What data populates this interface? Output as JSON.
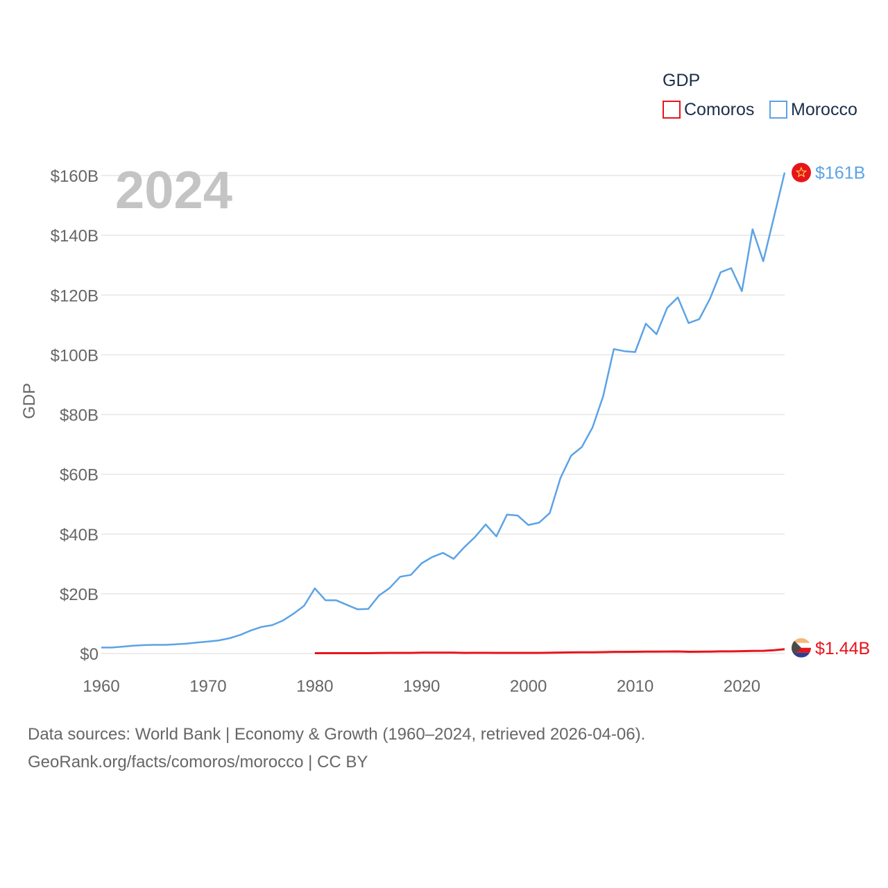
{
  "chart_data": {
    "type": "line",
    "title": "",
    "ylabel": "GDP",
    "xlabel": "",
    "current_year": "2024",
    "xlim": [
      1960,
      2024
    ],
    "ylim": [
      0,
      160
    ],
    "y_unit": "billion USD",
    "x_ticks": [
      1960,
      1970,
      1980,
      1990,
      2000,
      2010,
      2020
    ],
    "y_ticks": [
      {
        "value": 0,
        "label": "$0"
      },
      {
        "value": 20,
        "label": "$20B"
      },
      {
        "value": 40,
        "label": "$40B"
      },
      {
        "value": 60,
        "label": "$60B"
      },
      {
        "value": 80,
        "label": "$80B"
      },
      {
        "value": 100,
        "label": "$100B"
      },
      {
        "value": 120,
        "label": "$120B"
      },
      {
        "value": 140,
        "label": "$140B"
      },
      {
        "value": 160,
        "label": "$160B"
      }
    ],
    "legend": {
      "title": "GDP",
      "position": "top-right"
    },
    "series": [
      {
        "name": "Comoros",
        "color": "#e8141c",
        "end_label": "$1.44B",
        "flag_icon": "comoros-flag-icon",
        "x": [
          1980,
          1981,
          1982,
          1983,
          1984,
          1985,
          1986,
          1987,
          1988,
          1989,
          1990,
          1991,
          1992,
          1993,
          1994,
          1995,
          1996,
          1997,
          1998,
          1999,
          2000,
          2001,
          2002,
          2003,
          2004,
          2005,
          2006,
          2007,
          2008,
          2009,
          2010,
          2011,
          2012,
          2013,
          2014,
          2015,
          2016,
          2017,
          2018,
          2019,
          2020,
          2021,
          2022,
          2023,
          2024
        ],
        "values": [
          0.12,
          0.11,
          0.11,
          0.11,
          0.11,
          0.11,
          0.16,
          0.2,
          0.22,
          0.22,
          0.29,
          0.29,
          0.3,
          0.3,
          0.2,
          0.24,
          0.24,
          0.21,
          0.21,
          0.22,
          0.2,
          0.22,
          0.25,
          0.32,
          0.36,
          0.39,
          0.42,
          0.47,
          0.55,
          0.56,
          0.58,
          0.63,
          0.62,
          0.68,
          0.7,
          0.57,
          0.6,
          0.66,
          0.72,
          0.73,
          0.79,
          0.87,
          0.9,
          1.09,
          1.44
        ]
      },
      {
        "name": "Morocco",
        "color": "#5ba3e6",
        "end_label": "$161B",
        "flag_icon": "morocco-flag-icon",
        "x": [
          1960,
          1961,
          1962,
          1963,
          1964,
          1965,
          1966,
          1967,
          1968,
          1969,
          1970,
          1971,
          1972,
          1973,
          1974,
          1975,
          1976,
          1977,
          1978,
          1979,
          1980,
          1981,
          1982,
          1983,
          1984,
          1985,
          1986,
          1987,
          1988,
          1989,
          1990,
          1991,
          1992,
          1993,
          1994,
          1995,
          1996,
          1997,
          1998,
          1999,
          2000,
          2001,
          2002,
          2003,
          2004,
          2005,
          2006,
          2007,
          2008,
          2009,
          2010,
          2011,
          2012,
          2013,
          2014,
          2015,
          2016,
          2017,
          2018,
          2019,
          2020,
          2021,
          2022,
          2023,
          2024
        ],
        "values": [
          2.0,
          2.0,
          2.3,
          2.6,
          2.8,
          2.9,
          2.9,
          3.1,
          3.3,
          3.7,
          4.0,
          4.4,
          5.1,
          6.2,
          7.7,
          8.9,
          9.5,
          11.0,
          13.3,
          16.0,
          21.8,
          17.8,
          17.8,
          16.3,
          14.8,
          14.9,
          19.4,
          21.9,
          25.7,
          26.3,
          30.2,
          32.3,
          33.7,
          31.7,
          35.6,
          39.0,
          43.2,
          39.2,
          46.5,
          46.2,
          43.0,
          43.8,
          47.0,
          58.7,
          66.2,
          69.1,
          75.6,
          86.1,
          101.9,
          101.2,
          100.9,
          110.4,
          106.9,
          115.7,
          119.2,
          110.6,
          111.9,
          118.7,
          127.6,
          129.0,
          121.3,
          142.0,
          131.3,
          146.1,
          161.0
        ]
      }
    ]
  },
  "footer": {
    "line1": "Data sources: World Bank | Economy & Growth (1960–2024, retrieved 2026-04-06).",
    "line2": "GeoRank.org/facts/comoros/morocco | CC BY"
  }
}
